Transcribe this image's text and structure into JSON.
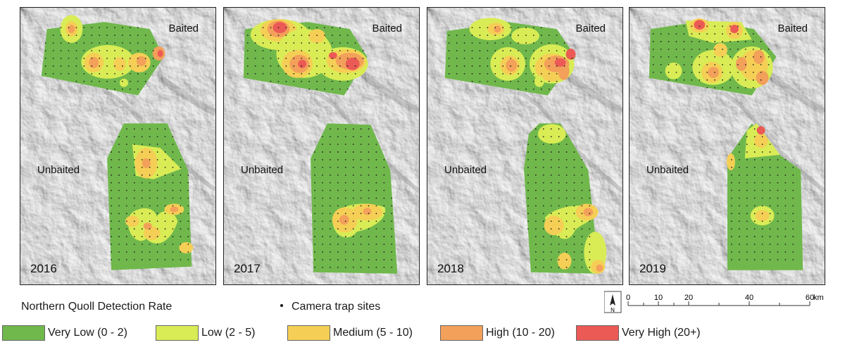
{
  "panels": [
    {
      "year": "2016",
      "baited": "Baited",
      "unbaited": "Unbaited"
    },
    {
      "year": "2017",
      "baited": "Baited",
      "unbaited": "Unbaited"
    },
    {
      "year": "2018",
      "baited": "Baited",
      "unbaited": "Unbaited"
    },
    {
      "year": "2019",
      "baited": "Baited",
      "unbaited": "Unbaited"
    }
  ],
  "legend": {
    "title": "Northern Quoll Detection Rate",
    "camera_label": "Camera trap sites",
    "classes": [
      {
        "label": "Very Low (0 - 2)",
        "color": "#70b84c"
      },
      {
        "label": "Low (2 - 5)",
        "color": "#d9ec55"
      },
      {
        "label": "Medium (5 - 10)",
        "color": "#f5cf55"
      },
      {
        "label": "High (10 - 20)",
        "color": "#f2a05a"
      },
      {
        "label": "Very High (20+)",
        "color": "#ec5a55"
      }
    ]
  },
  "north_arrow": "N",
  "scale": {
    "ticks": [
      "0",
      "10",
      "20",
      "40",
      "60"
    ],
    "unit": "km"
  }
}
